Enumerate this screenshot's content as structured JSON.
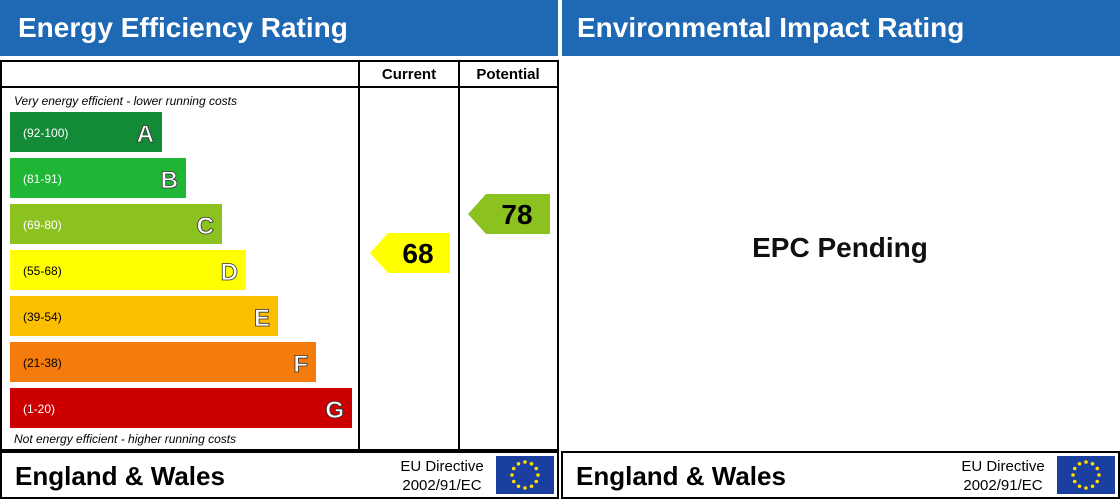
{
  "energy": {
    "title": "Energy Efficiency Rating",
    "header": {
      "current": "Current",
      "potential": "Potential"
    },
    "top_note": "Very energy efficient - lower running costs",
    "bottom_note": "Not energy efficient - higher running costs",
    "bands": [
      {
        "range": "(92-100)",
        "letter": "A",
        "color": "#138a36"
      },
      {
        "range": "(81-91)",
        "letter": "B",
        "color": "#1fb635"
      },
      {
        "range": "(69-80)",
        "letter": "C",
        "color": "#8cc21f"
      },
      {
        "range": "(55-68)",
        "letter": "D",
        "color": "#ffff00"
      },
      {
        "range": "(39-54)",
        "letter": "E",
        "color": "#fbbf00"
      },
      {
        "range": "(21-38)",
        "letter": "F",
        "color": "#f57c0c"
      },
      {
        "range": "(1-20)",
        "letter": "G",
        "color": "#cc0000"
      }
    ],
    "current": "68",
    "potential": "78"
  },
  "environmental": {
    "title": "Environmental Impact Rating",
    "status": "EPC Pending"
  },
  "footer": {
    "region": "England & Wales",
    "directive": "EU Directive",
    "code": "2002/91/EC"
  }
}
